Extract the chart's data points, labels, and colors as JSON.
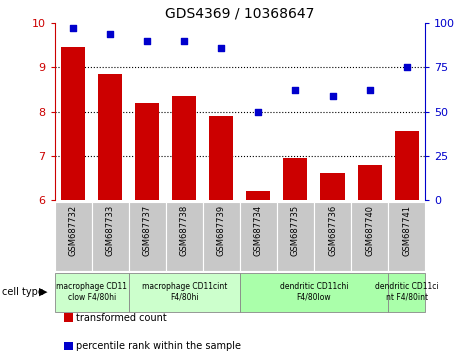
{
  "title": "GDS4369 / 10368647",
  "samples": [
    "GSM687732",
    "GSM687733",
    "GSM687737",
    "GSM687738",
    "GSM687739",
    "GSM687734",
    "GSM687735",
    "GSM687736",
    "GSM687740",
    "GSM687741"
  ],
  "transformed_count": [
    9.45,
    8.85,
    8.2,
    8.35,
    7.9,
    6.2,
    6.95,
    6.6,
    6.8,
    7.57
  ],
  "percentile_rank": [
    97,
    94,
    90,
    90,
    86,
    50,
    62,
    59,
    62,
    75
  ],
  "ylim_left": [
    6,
    10
  ],
  "ylim_right": [
    0,
    100
  ],
  "yticks_left": [
    6,
    7,
    8,
    9,
    10
  ],
  "yticks_right": [
    0,
    25,
    50,
    75,
    100
  ],
  "bar_color": "#cc0000",
  "dot_color": "#0000cc",
  "grid_color": "#000000",
  "cell_type_groups": [
    {
      "label": "macrophage CD11\nclow F4/80hi",
      "start": 0,
      "end": 2,
      "color": "#ccffcc"
    },
    {
      "label": "macrophage CD11cint\nF4/80hi",
      "start": 2,
      "end": 5,
      "color": "#ccffcc"
    },
    {
      "label": "dendritic CD11chi\nF4/80low",
      "start": 5,
      "end": 9,
      "color": "#aaffaa"
    },
    {
      "label": "dendritic CD11ci\nnt F4/80int",
      "start": 9,
      "end": 10,
      "color": "#aaffaa"
    }
  ],
  "legend_bar_label": "transformed count",
  "legend_dot_label": "percentile rank within the sample",
  "cell_type_label": "cell type",
  "sample_bg_color": "#c8c8c8",
  "sample_edge_color": "#ffffff",
  "group_border_color": "#888888"
}
